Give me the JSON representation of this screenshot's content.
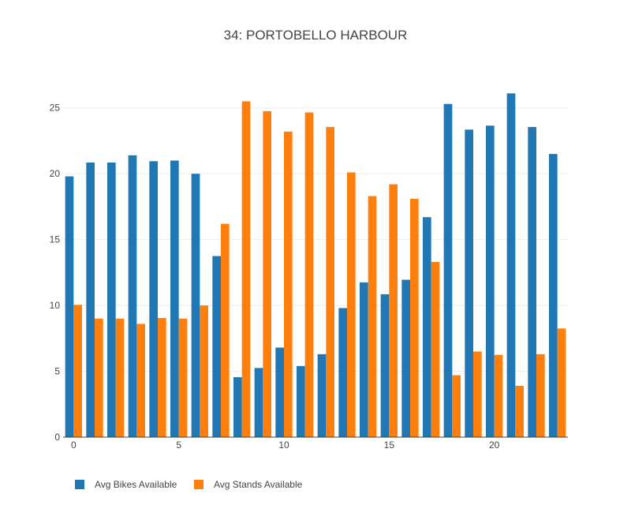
{
  "chart_data": {
    "type": "bar",
    "title": "34: PORTOBELLO HARBOUR",
    "xlabel": "",
    "ylabel": "",
    "x": [
      0,
      1,
      2,
      3,
      4,
      5,
      6,
      7,
      8,
      9,
      10,
      11,
      12,
      13,
      14,
      15,
      16,
      17,
      18,
      19,
      20,
      21,
      22,
      23
    ],
    "x_ticks": [
      0,
      5,
      10,
      15,
      20
    ],
    "y_ticks": [
      0,
      5,
      10,
      15,
      20,
      25
    ],
    "xlim": [
      -0.5,
      23.5
    ],
    "ylim": [
      0,
      27.2
    ],
    "grid": true,
    "legend_position": "bottom-left",
    "series": [
      {
        "name": "Avg Bikes Available",
        "color": "#1f77b4",
        "values": [
          19.8,
          20.85,
          20.85,
          21.4,
          20.95,
          21.0,
          20.0,
          13.75,
          4.55,
          5.25,
          6.8,
          5.4,
          6.3,
          9.8,
          11.75,
          10.85,
          11.95,
          16.7,
          25.3,
          23.35,
          23.65,
          26.1,
          23.55,
          21.5
        ]
      },
      {
        "name": "Avg Stands Available",
        "color": "#ff7f0e",
        "values": [
          10.05,
          9.0,
          9.0,
          8.6,
          9.05,
          9.0,
          10.0,
          16.2,
          25.5,
          24.75,
          23.2,
          24.65,
          23.55,
          20.1,
          18.3,
          19.2,
          18.1,
          13.3,
          4.7,
          6.5,
          6.25,
          3.9,
          6.3,
          8.25
        ]
      }
    ]
  }
}
